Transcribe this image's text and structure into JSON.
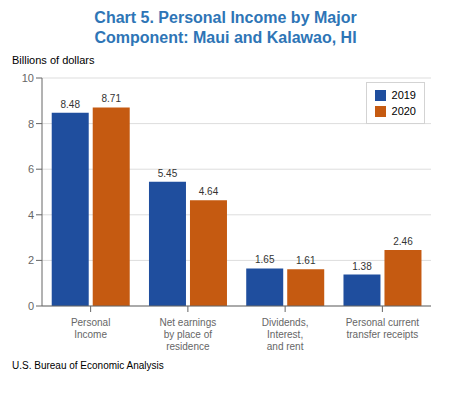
{
  "chart_data": {
    "type": "bar",
    "title": "Chart 5. Personal Income by Major\nComponent: Maui and Kalawao, HI",
    "y_label": "Billions of dollars",
    "annotations": [
      "U.S. Bureau of Economic Analysis"
    ],
    "categories": [
      "Personal\nIncome",
      "Net earnings\nby place of\nresidence",
      "Dividends,\nInterest,\nand rent",
      "Personal current\ntransfer receipts"
    ],
    "series": [
      {
        "name": "2019",
        "color": "#1f4e9e",
        "values": [
          8.48,
          5.45,
          1.65,
          1.38
        ]
      },
      {
        "name": "2020",
        "color": "#c55a11",
        "values": [
          8.71,
          4.64,
          1.61,
          2.46
        ]
      }
    ],
    "ylim": [
      0,
      10
    ],
    "yticks": [
      0,
      2,
      4,
      6,
      8,
      10
    ],
    "grid": true,
    "legend": "upper right",
    "data_labels": true
  }
}
